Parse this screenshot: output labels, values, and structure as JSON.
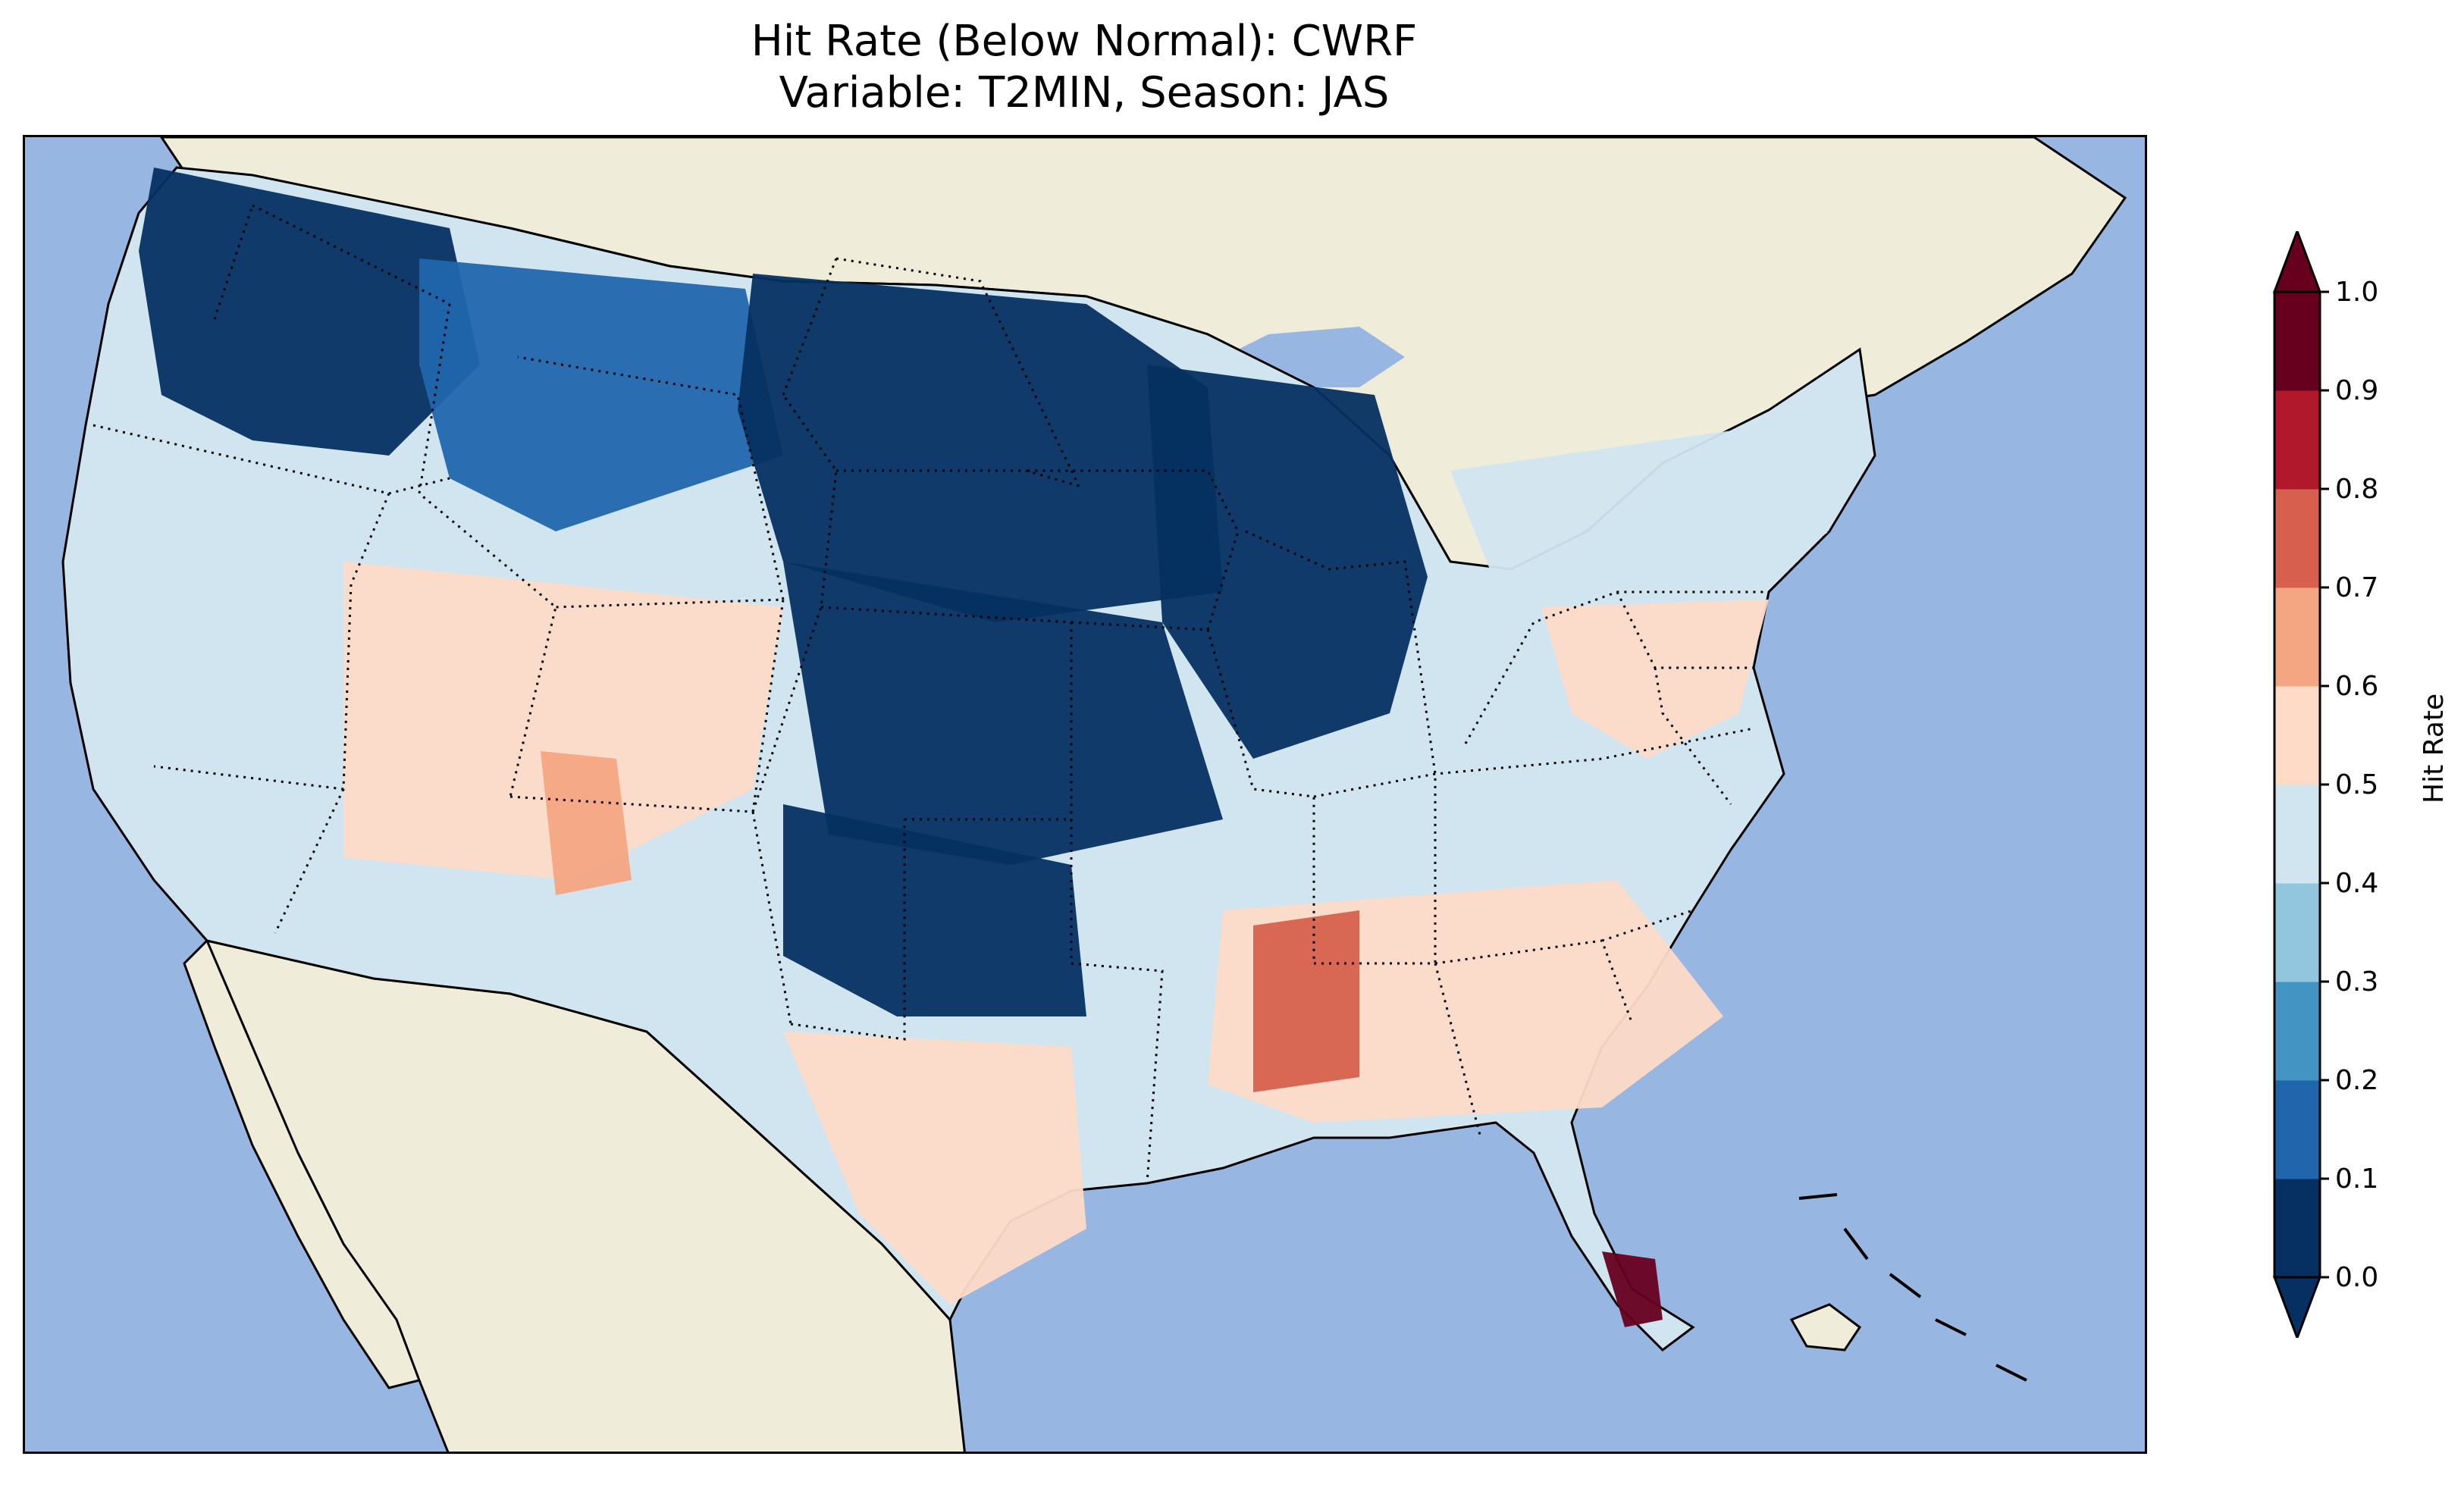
{
  "title_line1": "Hit Rate (Below Normal): CWRF",
  "title_line2": "Variable: T2MIN, Season: JAS",
  "colors": {
    "ocean": "#97b6e1",
    "land": "#efedda",
    "border": "#000000"
  },
  "colorbar": {
    "label": "Hit Rate",
    "extend": "both",
    "ticks": [
      "0.0",
      "0.1",
      "0.2",
      "0.3",
      "0.4",
      "0.5",
      "0.6",
      "0.7",
      "0.8",
      "0.9",
      "1.0"
    ],
    "bins": [
      {
        "range": [
          0.0,
          0.1
        ],
        "color": "#053061"
      },
      {
        "range": [
          0.1,
          0.2
        ],
        "color": "#2166ac"
      },
      {
        "range": [
          0.2,
          0.3
        ],
        "color": "#4393c3"
      },
      {
        "range": [
          0.3,
          0.4
        ],
        "color": "#92c5de"
      },
      {
        "range": [
          0.4,
          0.5
        ],
        "color": "#d1e5f0"
      },
      {
        "range": [
          0.5,
          0.6
        ],
        "color": "#fddbc7"
      },
      {
        "range": [
          0.6,
          0.7
        ],
        "color": "#f4a582"
      },
      {
        "range": [
          0.7,
          0.8
        ],
        "color": "#d6604d"
      },
      {
        "range": [
          0.8,
          0.9
        ],
        "color": "#b2182b"
      },
      {
        "range": [
          0.9,
          1.0
        ],
        "color": "#67001f"
      }
    ],
    "under_color": "#053061",
    "over_color": "#67001f"
  },
  "map_regions": [
    {
      "name": "pacific-northwest",
      "value": 0.05
    },
    {
      "name": "northern-rockies",
      "value": 0.15
    },
    {
      "name": "northern-plains",
      "value": 0.05
    },
    {
      "name": "upper-midwest",
      "value": 0.05
    },
    {
      "name": "central-plains",
      "value": 0.05
    },
    {
      "name": "southern-plains",
      "value": 0.05
    },
    {
      "name": "great-basin",
      "value": 0.45
    },
    {
      "name": "four-corners",
      "value": 0.55
    },
    {
      "name": "arizona-highlands",
      "value": 0.65
    },
    {
      "name": "northeast",
      "value": 0.45
    },
    {
      "name": "mid-atlantic",
      "value": 0.55
    },
    {
      "name": "deep-south",
      "value": 0.55
    },
    {
      "name": "mississippi-alabama",
      "value": 0.75
    },
    {
      "name": "south-texas",
      "value": 0.55
    },
    {
      "name": "south-florida",
      "value": 0.95
    }
  ]
}
